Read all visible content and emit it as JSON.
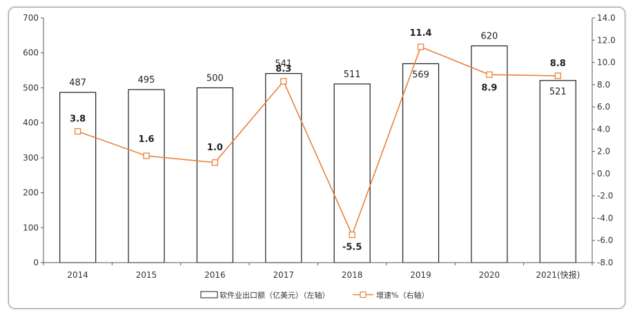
{
  "chart_data": {
    "type": "bar+line",
    "categories": [
      "2014",
      "2015",
      "2016",
      "2017",
      "2018",
      "2019",
      "2020",
      "2021(快报)"
    ],
    "series": [
      {
        "name": "软件业出口额（亿美元）（左轴）",
        "type": "bar",
        "axis": "left",
        "values": [
          487,
          495,
          500,
          541,
          511,
          569,
          620,
          521
        ]
      },
      {
        "name": "增速%（右轴）",
        "type": "line",
        "axis": "right",
        "values": [
          3.8,
          1.6,
          1.0,
          8.3,
          -5.5,
          11.4,
          8.9,
          8.8
        ]
      }
    ],
    "left_axis": {
      "ylim": [
        0,
        700
      ],
      "ticks": [
        "0",
        "100",
        "200",
        "300",
        "400",
        "500",
        "600",
        "700"
      ]
    },
    "right_axis": {
      "ylim": [
        -8,
        14
      ],
      "ticks": [
        "-8.0",
        "-6.0",
        "-4.0",
        "-2.0",
        "0.0",
        "2.0",
        "4.0",
        "6.0",
        "8.0",
        "10.0",
        "12.0",
        "14.0"
      ]
    },
    "bar_labels": [
      "487",
      "495",
      "500",
      "541",
      "511",
      "569",
      "620",
      "521"
    ],
    "line_labels": [
      "3.8",
      "1.6",
      "1.0",
      "8.3",
      "-5.5",
      "11.4",
      "8.9",
      "8.8"
    ],
    "legend_position": "bottom",
    "grid": false,
    "colors": {
      "bar_fill": "#ffffff",
      "bar_stroke": "#1a1a1a",
      "line": "#e8813a",
      "marker_fill": "#ffffff"
    }
  }
}
